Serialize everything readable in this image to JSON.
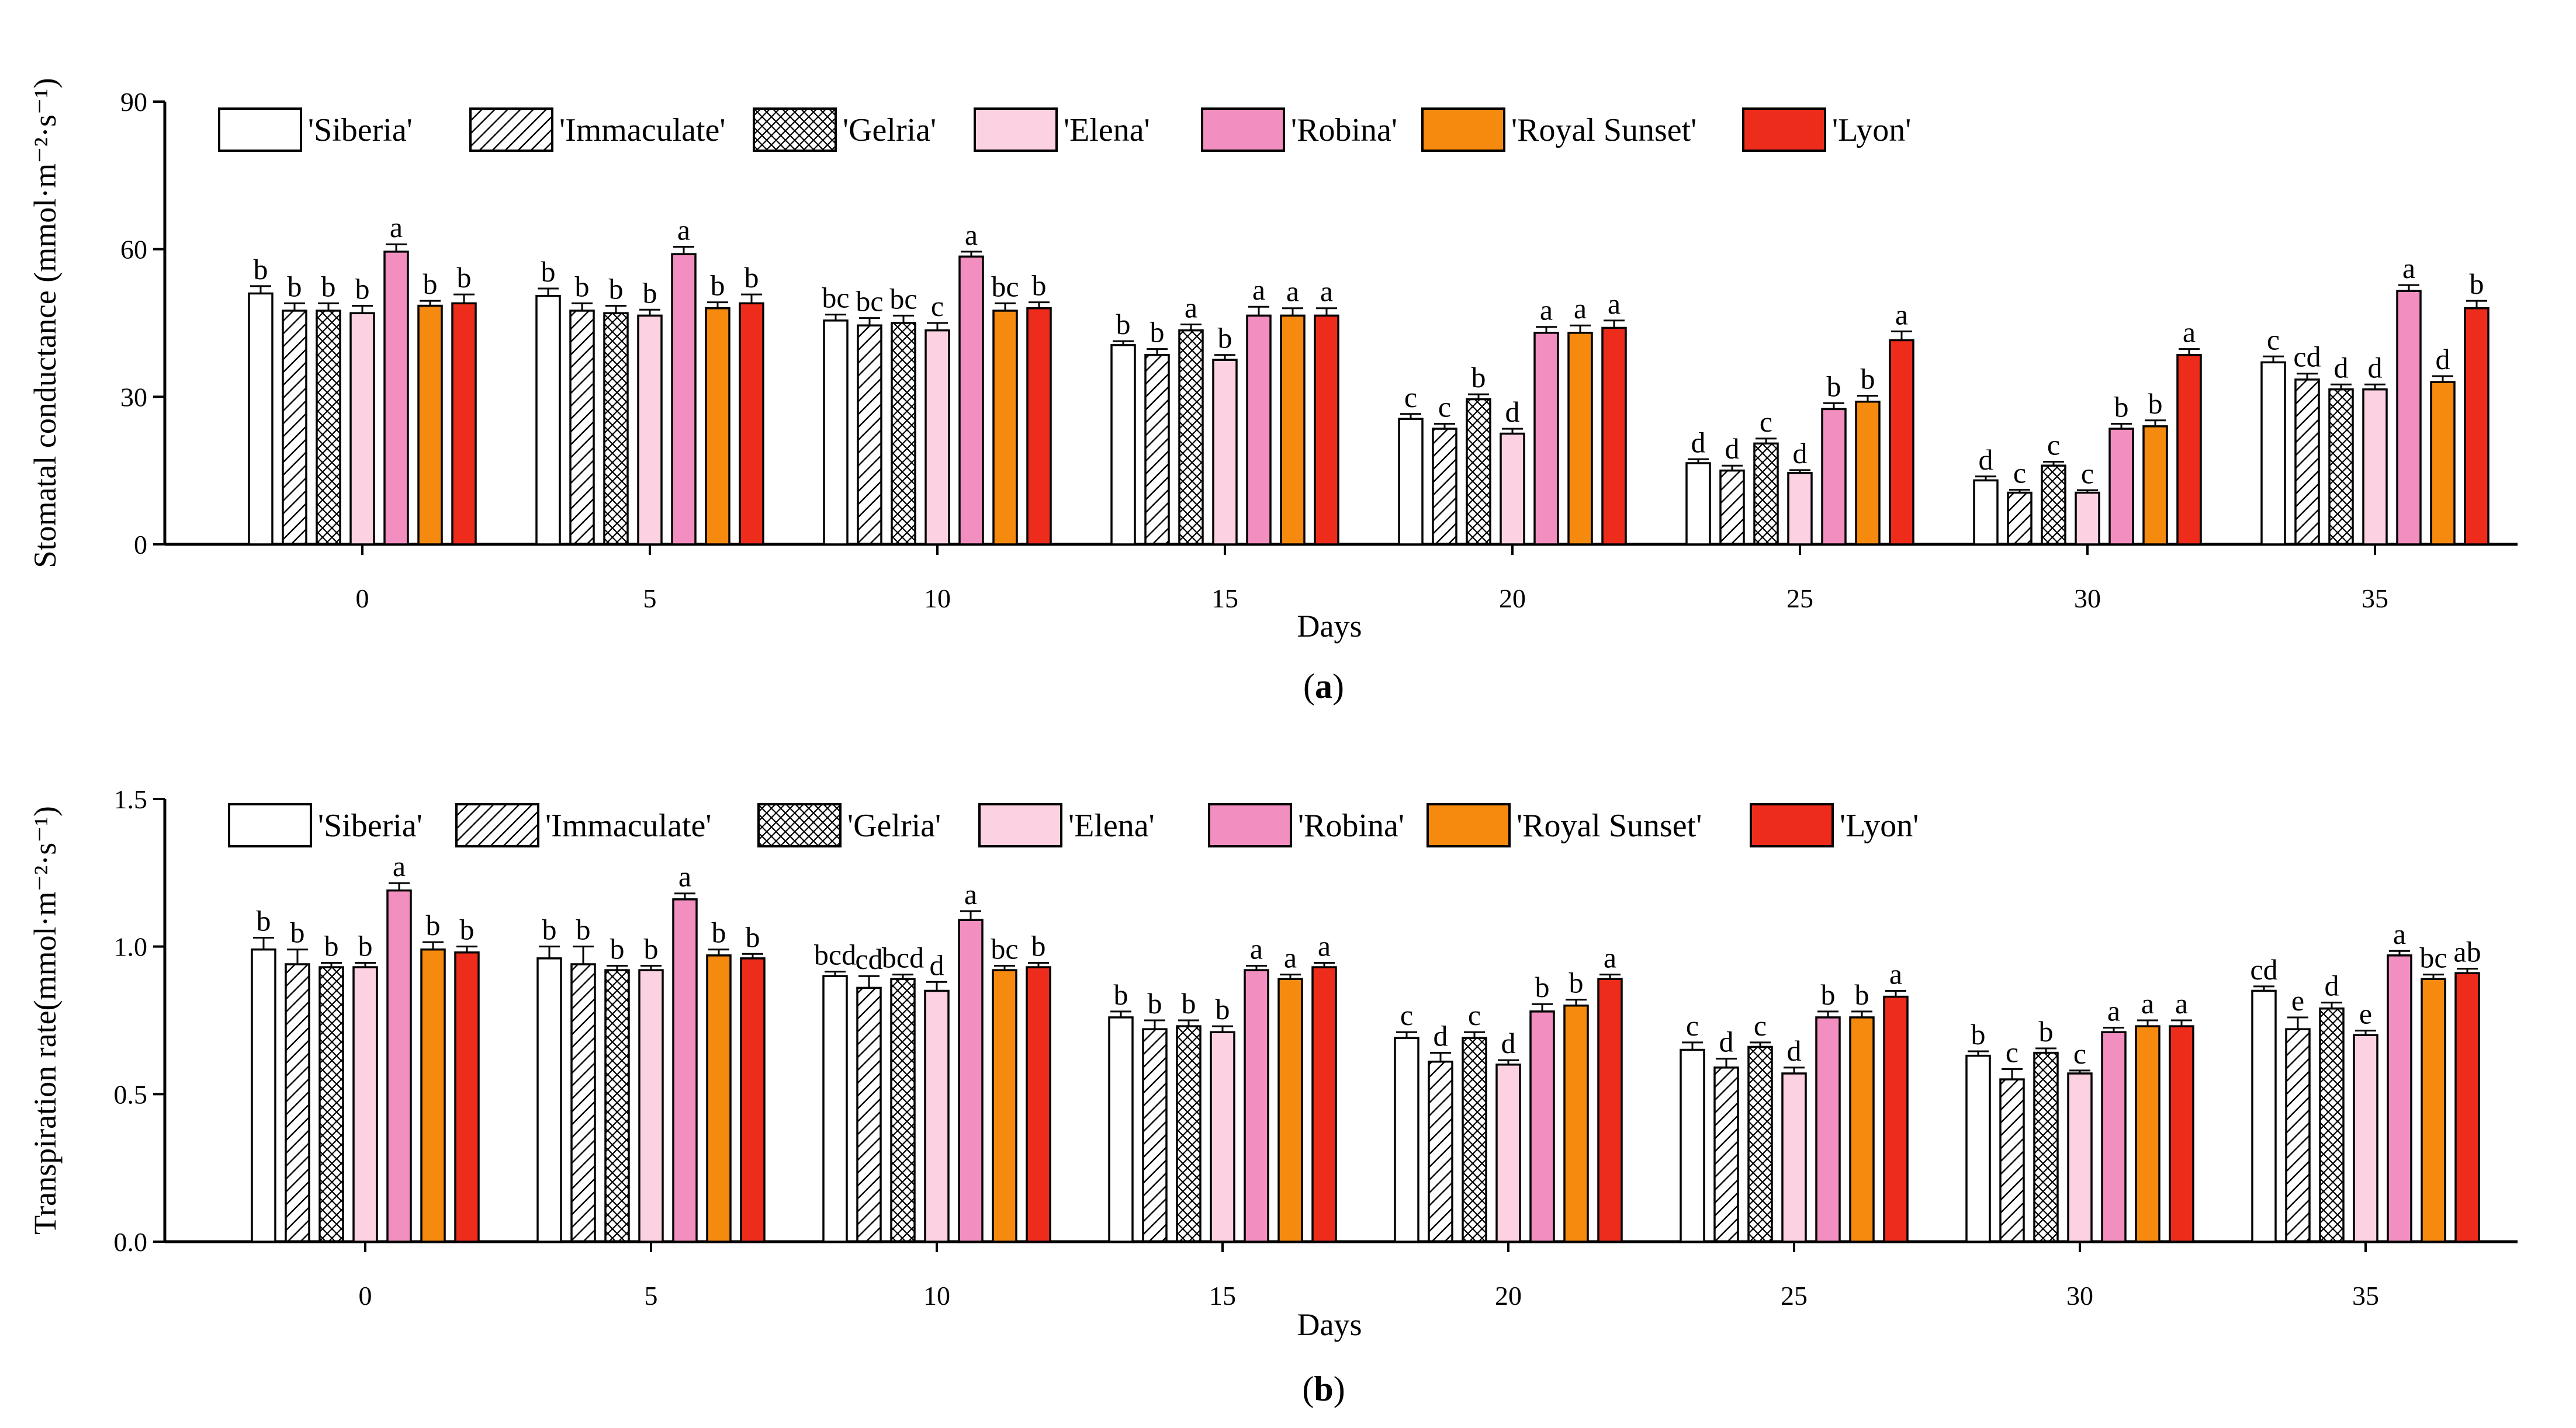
{
  "chart_data": [
    {
      "type": "bar",
      "panel": "(a)",
      "panel_letter": "a",
      "xlabel": "Days",
      "ylabel": "Stomatal conductance (mmol·m⁻²·s⁻¹)",
      "ylim": [
        0,
        90
      ],
      "yticks": [
        "0",
        "30",
        "60",
        "90"
      ],
      "categories": [
        "0",
        "5",
        "10",
        "15",
        "20",
        "25",
        "30",
        "35"
      ],
      "legend": [
        "'Siberia'",
        "'Immaculate'",
        "'Gelria'",
        "'Elena'",
        "'Robina'",
        "'Royal Sunset'",
        "'Lyon'"
      ],
      "series": [
        {
          "name": "'Siberia'",
          "values": [
            51,
            50.5,
            45.5,
            40.5,
            25.5,
            16.5,
            13,
            37
          ],
          "errors": [
            1.5,
            1.5,
            1.2,
            0.8,
            1.0,
            0.8,
            0.8,
            1.2
          ],
          "labels": [
            "b",
            "b",
            "bc",
            "b",
            "c",
            "d",
            "d",
            "c"
          ]
        },
        {
          "name": "'Immaculate'",
          "values": [
            47.5,
            47.5,
            44.5,
            38.5,
            23.5,
            15.0,
            10.5,
            33.5
          ],
          "errors": [
            1.5,
            1.5,
            1.5,
            1.2,
            1.0,
            1.0,
            0.6,
            1.2
          ],
          "labels": [
            "b",
            "b",
            "bc",
            "b",
            "c",
            "d",
            "c",
            "cd"
          ]
        },
        {
          "name": "'Gelria'",
          "values": [
            47.5,
            47.0,
            45.0,
            43.5,
            29.5,
            20.5,
            16.0,
            31.5
          ],
          "errors": [
            1.5,
            1.5,
            1.5,
            1.2,
            1.0,
            1.0,
            0.8,
            1.0
          ],
          "labels": [
            "b",
            "b",
            "bc",
            "a",
            "b",
            "c",
            "c",
            "d"
          ]
        },
        {
          "name": "'Elena'",
          "values": [
            47.0,
            46.5,
            43.5,
            37.5,
            22.5,
            14.5,
            10.5,
            31.5
          ],
          "errors": [
            1.5,
            1.2,
            1.5,
            1.0,
            1.0,
            0.6,
            0.5,
            1.0
          ],
          "labels": [
            "b",
            "b",
            "c",
            "b",
            "d",
            "d",
            "c",
            "d"
          ]
        },
        {
          "name": "'Robina'",
          "values": [
            59.5,
            59.0,
            58.5,
            46.5,
            43.0,
            27.5,
            23.5,
            51.5
          ],
          "errors": [
            1.5,
            1.5,
            1.0,
            1.8,
            1.2,
            1.2,
            1.0,
            1.2
          ],
          "labels": [
            "a",
            "a",
            "a",
            "a",
            "a",
            "b",
            "b",
            "a"
          ]
        },
        {
          "name": "'Royal Sunset'",
          "values": [
            48.5,
            48.0,
            47.5,
            46.5,
            43.0,
            29.0,
            24.0,
            33.0
          ],
          "errors": [
            1.0,
            1.2,
            1.5,
            1.5,
            1.5,
            1.2,
            1.2,
            1.2
          ],
          "labels": [
            "b",
            "b",
            "bc",
            "a",
            "a",
            "b",
            "b",
            "d"
          ]
        },
        {
          "name": "'Lyon'",
          "values": [
            49.0,
            49.0,
            48.0,
            46.5,
            44.0,
            41.5,
            38.5,
            48.0
          ],
          "errors": [
            1.8,
            1.8,
            1.2,
            1.5,
            1.5,
            1.8,
            1.2,
            1.5
          ],
          "labels": [
            "b",
            "b",
            "b",
            "a",
            "a",
            "a",
            "a",
            "b"
          ]
        }
      ]
    },
    {
      "type": "bar",
      "panel": "(b)",
      "panel_letter": "b",
      "xlabel": "Days",
      "ylabel": "Transpiration rate(mmol·m⁻²·s⁻¹)",
      "ylim": [
        0,
        1.5
      ],
      "yticks": [
        "0.0",
        "0.5",
        "1.0",
        "1.5"
      ],
      "categories": [
        "0",
        "5",
        "10",
        "15",
        "20",
        "25",
        "30",
        "35"
      ],
      "legend": [
        "'Siberia'",
        "'Immaculate'",
        "'Gelria'",
        "'Elena'",
        "'Robina'",
        "'Royal Sunset'",
        "'Lyon'"
      ],
      "series": [
        {
          "name": "'Siberia'",
          "values": [
            0.99,
            0.96,
            0.9,
            0.76,
            0.69,
            0.65,
            0.63,
            0.85
          ],
          "errors": [
            0.04,
            0.04,
            0.015,
            0.02,
            0.02,
            0.025,
            0.015,
            0.015
          ],
          "labels": [
            "b",
            "b",
            "bcd",
            "b",
            "c",
            "c",
            "b",
            "cd"
          ]
        },
        {
          "name": "'Immaculate'",
          "values": [
            0.94,
            0.94,
            0.86,
            0.72,
            0.61,
            0.59,
            0.55,
            0.72
          ],
          "errors": [
            0.05,
            0.06,
            0.04,
            0.03,
            0.03,
            0.03,
            0.035,
            0.04
          ],
          "labels": [
            "b",
            "b",
            "cd",
            "b",
            "d",
            "d",
            "c",
            "e"
          ]
        },
        {
          "name": "'Gelria'",
          "values": [
            0.93,
            0.92,
            0.89,
            0.73,
            0.69,
            0.66,
            0.64,
            0.79
          ],
          "errors": [
            0.015,
            0.015,
            0.015,
            0.02,
            0.02,
            0.015,
            0.015,
            0.02
          ],
          "labels": [
            "b",
            "b",
            "bcd",
            "b",
            "c",
            "c",
            "b",
            "d"
          ]
        },
        {
          "name": "'Elena'",
          "values": [
            0.93,
            0.92,
            0.85,
            0.71,
            0.6,
            0.57,
            0.57,
            0.7
          ],
          "errors": [
            0.015,
            0.015,
            0.03,
            0.02,
            0.015,
            0.02,
            0.01,
            0.015
          ],
          "labels": [
            "b",
            "b",
            "d",
            "b",
            "d",
            "d",
            "c",
            "e"
          ]
        },
        {
          "name": "'Robina'",
          "values": [
            1.19,
            1.16,
            1.09,
            0.92,
            0.78,
            0.76,
            0.71,
            0.97
          ],
          "errors": [
            0.025,
            0.02,
            0.03,
            0.015,
            0.025,
            0.02,
            0.015,
            0.015
          ],
          "labels": [
            "a",
            "a",
            "a",
            "a",
            "b",
            "b",
            "a",
            "a"
          ]
        },
        {
          "name": "'Royal Sunset'",
          "values": [
            0.99,
            0.97,
            0.92,
            0.89,
            0.8,
            0.76,
            0.73,
            0.89
          ],
          "errors": [
            0.025,
            0.02,
            0.015,
            0.015,
            0.02,
            0.02,
            0.02,
            0.015
          ],
          "labels": [
            "b",
            "b",
            "bc",
            "a",
            "b",
            "b",
            "a",
            "bc"
          ]
        },
        {
          "name": "'Lyon'",
          "values": [
            0.98,
            0.96,
            0.93,
            0.93,
            0.89,
            0.83,
            0.73,
            0.91
          ],
          "errors": [
            0.02,
            0.015,
            0.015,
            0.015,
            0.015,
            0.02,
            0.02,
            0.015
          ],
          "labels": [
            "b",
            "b",
            "b",
            "a",
            "a",
            "a",
            "a",
            "ab"
          ]
        }
      ]
    }
  ],
  "styles": {
    "fills": [
      "#ffffff",
      "#ffffff",
      "#ffffff",
      "#fcd2e2",
      "#f28fc0",
      "#f58a0e",
      "#ee2c1c"
    ],
    "patterns": [
      "none",
      "diagonal",
      "crosshatch",
      "none",
      "none",
      "none",
      "none"
    ],
    "outline": "#000000"
  }
}
